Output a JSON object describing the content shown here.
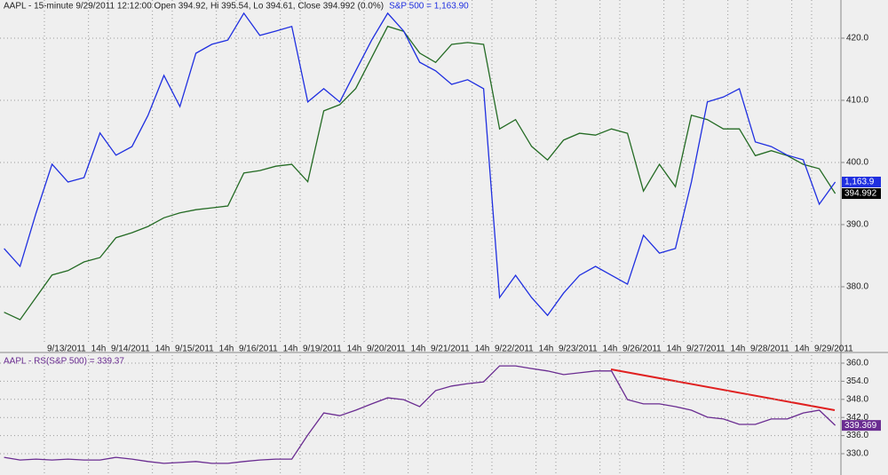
{
  "chart_data": [
    {
      "type": "line",
      "title": "AAPL - 15-minute 9/29/2011 12:12:00 Open 394.92, Hi 395.54, Lo 394.61, Close 394.992 (0.0%)",
      "subtitle": "S&P 500 = 1,163.90",
      "x": [
        0.37,
        0.62,
        0.87,
        1.12,
        1.37,
        1.62,
        1.87,
        2.12,
        2.37,
        2.62,
        2.87,
        3.12,
        3.37,
        3.62,
        3.87,
        4.12,
        4.37,
        4.62,
        4.87,
        5.12,
        5.37,
        5.62,
        5.87,
        6.12,
        6.37,
        6.62,
        6.87,
        7.12,
        7.37,
        7.62,
        7.87,
        8.12,
        8.37,
        8.62,
        8.87,
        9.12,
        9.37,
        9.62,
        9.87,
        10.12,
        10.37,
        10.62,
        10.87,
        11.12,
        11.37,
        11.62,
        11.87,
        12.12,
        12.37,
        12.62,
        12.87,
        13.12,
        13.37
      ],
      "xlim": [
        0.306,
        13.431
      ],
      "xticks": [
        {
          "value": 1,
          "label": "9/13/2011"
        },
        {
          "value": 1.69,
          "label": "14h"
        },
        {
          "value": 2,
          "label": "9/14/2011"
        },
        {
          "value": 2.69,
          "label": "14h"
        },
        {
          "value": 3,
          "label": "9/15/2011"
        },
        {
          "value": 3.69,
          "label": "14h"
        },
        {
          "value": 4,
          "label": "9/16/2011"
        },
        {
          "value": 4.69,
          "label": "14h"
        },
        {
          "value": 5,
          "label": "9/19/2011"
        },
        {
          "value": 5.69,
          "label": "14h"
        },
        {
          "value": 6,
          "label": "9/20/2011"
        },
        {
          "value": 6.69,
          "label": "14h"
        },
        {
          "value": 7,
          "label": "9/21/2011"
        },
        {
          "value": 7.69,
          "label": "14h"
        },
        {
          "value": 8,
          "label": "9/22/2011"
        },
        {
          "value": 8.69,
          "label": "14h"
        },
        {
          "value": 9,
          "label": "9/23/2011"
        },
        {
          "value": 9.69,
          "label": "14h"
        },
        {
          "value": 10,
          "label": "9/26/2011"
        },
        {
          "value": 10.69,
          "label": "14h"
        },
        {
          "value": 11,
          "label": "9/27/2011"
        },
        {
          "value": 11.69,
          "label": "14h"
        },
        {
          "value": 12,
          "label": "9/28/2011"
        },
        {
          "value": 12.69,
          "label": "14h"
        },
        {
          "value": 13,
          "label": "9/29/2011"
        }
      ],
      "ylim": [
        371.14,
        426.14
      ],
      "yticks": [
        {
          "value": 380,
          "label": "380.0"
        },
        {
          "value": 390,
          "label": "390.0"
        },
        {
          "value": 400,
          "label": "400.0"
        },
        {
          "value": 410,
          "label": "410.0"
        },
        {
          "value": 420,
          "label": "420.0"
        }
      ],
      "y2lim": [
        1112,
        1223
      ],
      "grid": true,
      "series": [
        {
          "color": "#246b24",
          "values": [
            375.9,
            374.7,
            378.3,
            381.9,
            382.6,
            384,
            384.7,
            387.9,
            388.7,
            389.7,
            391.1,
            391.9,
            392.4,
            392.7,
            393,
            398.3,
            398.7,
            399.4,
            399.7,
            396.9,
            408.3,
            409.3,
            411.9,
            416.9,
            421.9,
            421.1,
            417.6,
            416.1,
            419,
            419.3,
            419,
            405.4,
            406.9,
            402.6,
            400.4,
            403.6,
            404.7,
            404.4,
            405.4,
            404.7,
            395.4,
            399.7,
            396.1,
            407.6,
            406.9,
            405.4,
            405.4,
            401.1,
            401.9,
            401.1,
            399.7,
            399,
            394.992
          ]
        },
        {
          "color": "#1f2fe0",
          "axis": "y2",
          "values": [
            1142.3,
            1136.5,
            1153.8,
            1169.7,
            1163.9,
            1165.3,
            1179.8,
            1172.6,
            1175.4,
            1185.5,
            1198.5,
            1188.4,
            1205.7,
            1208.6,
            1210,
            1218.7,
            1211.5,
            1212.9,
            1214.4,
            1189.9,
            1194.2,
            1189.9,
            1200,
            1210,
            1218.7,
            1212.9,
            1202.8,
            1200,
            1195.6,
            1197.1,
            1194.2,
            1126.4,
            1133.6,
            1126.4,
            1120.6,
            1127.8,
            1133.6,
            1136.5,
            1133.6,
            1130.7,
            1146.6,
            1140.8,
            1142.3,
            1163.9,
            1189.9,
            1191.5,
            1194.2,
            1176.9,
            1175.4,
            1172.6,
            1171.1,
            1156.7,
            1163.9
          ],
          "value_labels": [
            null,
            null,
            null,
            null,
            null,
            null,
            null,
            null,
            null,
            null,
            null,
            null,
            null,
            null,
            null,
            null,
            null,
            null,
            null,
            null,
            null,
            null,
            null,
            null,
            null,
            null,
            null,
            null,
            null,
            null,
            null,
            null,
            null,
            null,
            null,
            null,
            null,
            null,
            null,
            null,
            null,
            null,
            null,
            null,
            null,
            null,
            null,
            null,
            null,
            null,
            null,
            null,
            "1,163.9"
          ]
        }
      ]
    },
    {
      "type": "line",
      "title": "AAPL - RS(S&P 500) = 339.37",
      "x": [
        0.37,
        0.62,
        0.87,
        1.12,
        1.37,
        1.62,
        1.87,
        2.12,
        2.37,
        2.62,
        2.87,
        3.12,
        3.37,
        3.62,
        3.87,
        4.12,
        4.37,
        4.62,
        4.87,
        5.12,
        5.37,
        5.62,
        5.87,
        6.12,
        6.37,
        6.62,
        6.87,
        7.12,
        7.37,
        7.62,
        7.87,
        8.12,
        8.37,
        8.62,
        8.87,
        9.12,
        9.37,
        9.62,
        9.87,
        10.12,
        10.37,
        10.62,
        10.87,
        11.12,
        11.37,
        11.62,
        11.87,
        12.12,
        12.37,
        12.62,
        12.87,
        13.12,
        13.37
      ],
      "xlim": [
        0.306,
        13.431
      ],
      "ylim": [
        322.94,
        362.65
      ],
      "yticks": [
        {
          "value": 330,
          "label": "330.0"
        },
        {
          "value": 336,
          "label": "336.0"
        },
        {
          "value": 342,
          "label": "342.0"
        },
        {
          "value": 348,
          "label": "348.0"
        },
        {
          "value": 354,
          "label": "354.0"
        },
        {
          "value": 360,
          "label": "360.0"
        }
      ],
      "grid": true,
      "series": [
        {
          "color": "#6a2c91",
          "values": [
            328.8,
            327.9,
            328.2,
            327.9,
            328.2,
            327.9,
            327.9,
            328.8,
            328.2,
            327.4,
            326.8,
            327.1,
            327.4,
            326.8,
            326.8,
            327.4,
            327.9,
            328.2,
            328.2,
            336.2,
            343.5,
            342.6,
            344.4,
            346.5,
            348.5,
            347.9,
            345.6,
            350.9,
            352.4,
            353.2,
            353.8,
            359.1,
            359.1,
            358.2,
            357.4,
            356.2,
            356.8,
            357.4,
            357.4,
            347.9,
            346.5,
            346.5,
            345.6,
            344.4,
            342.1,
            341.5,
            339.7,
            339.7,
            341.5,
            341.5,
            343.5,
            344.4,
            339.369
          ]
        }
      ]
    }
  ]
}
